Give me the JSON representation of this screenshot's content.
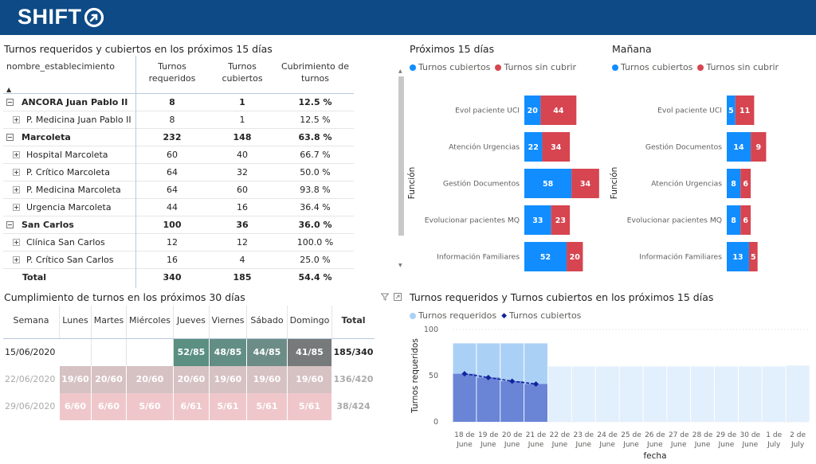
{
  "app": {
    "logo_text": "SHIFT",
    "brand_color": "#0d4a86"
  },
  "coverage_table": {
    "title": "Turnos requeridos y cubiertos en los próximos 15 días",
    "headers": [
      "nombre_establecimiento",
      "Turnos requeridos",
      "Turnos cubiertos",
      "Cubrimiento de turnos"
    ],
    "rows": [
      {
        "type": "group",
        "name": "ANCORA Juan Pablo II",
        "req": "8",
        "cov": "1",
        "pct": "12.5 %"
      },
      {
        "type": "child",
        "name": "P. Medicina Juan Pablo II",
        "req": "8",
        "cov": "1",
        "pct": "12.5 %"
      },
      {
        "type": "group",
        "name": "Marcoleta",
        "req": "232",
        "cov": "148",
        "pct": "63.8 %"
      },
      {
        "type": "child",
        "name": "Hospital Marcoleta",
        "req": "60",
        "cov": "40",
        "pct": "66.7 %"
      },
      {
        "type": "child",
        "name": "P. Crítico Marcoleta",
        "req": "64",
        "cov": "32",
        "pct": "50.0 %"
      },
      {
        "type": "child",
        "name": "P. Medicina Marcoleta",
        "req": "64",
        "cov": "60",
        "pct": "93.8 %"
      },
      {
        "type": "child",
        "name": "Urgencia Marcoleta",
        "req": "44",
        "cov": "16",
        "pct": "36.4 %"
      },
      {
        "type": "group",
        "name": "San Carlos",
        "req": "100",
        "cov": "36",
        "pct": "36.0 %"
      },
      {
        "type": "child",
        "name": "Clínica San Carlos",
        "req": "12",
        "cov": "12",
        "pct": "100.0 %"
      },
      {
        "type": "child",
        "name": "P. Crítico San Carlos",
        "req": "16",
        "cov": "4",
        "pct": "25.0 %"
      }
    ],
    "total": {
      "name": "Total",
      "req": "340",
      "cov": "185",
      "pct": "54.4 %"
    }
  },
  "weekly_table": {
    "title": "Cumplimiento de turnos en los próximos 30 días",
    "headers": [
      "Semana",
      "Lunes",
      "Martes",
      "Miércoles",
      "Jueves",
      "Viernes",
      "Sábado",
      "Domingo",
      "Total"
    ],
    "rows": [
      {
        "week": "15/06/2020",
        "cells": [
          "",
          "",
          "",
          "52/85",
          "48/85",
          "44/85",
          "41/85"
        ],
        "colors": [
          "",
          "",
          "",
          "#5a8f82",
          "#628e85",
          "#6c8c87",
          "#767a7a"
        ],
        "total": "185/340",
        "faded": false
      },
      {
        "week": "22/06/2020",
        "cells": [
          "19/60",
          "20/60",
          "20/60",
          "20/60",
          "19/60",
          "19/60",
          "19/60"
        ],
        "colors": [
          "#d6c1c3",
          "#d6c1c3",
          "#d6c1c3",
          "#d6c1c3",
          "#d6c1c3",
          "#d6c1c3",
          "#d6c1c3"
        ],
        "total": "136/420",
        "faded": true
      },
      {
        "week": "29/06/2020",
        "cells": [
          "6/60",
          "6/60",
          "5/60",
          "6/61",
          "5/61",
          "5/61",
          "5/61"
        ],
        "colors": [
          "#efc7cb",
          "#efc7cb",
          "#efc7cb",
          "#efc7cb",
          "#efc7cb",
          "#efc7cb",
          "#efc7cb"
        ],
        "total": "38/424",
        "faded": true
      }
    ]
  },
  "chart_data": [
    {
      "type": "bar",
      "title": "Próximos 15 días",
      "ylabel": "Función",
      "stacked": true,
      "orientation": "horizontal",
      "legend_position": "top-left",
      "categories": [
        "Evol paciente UCI",
        "Atención Urgencias",
        "Gestión Documentos",
        "Evolucionar pacientes MQ",
        "Información Familiares"
      ],
      "series": [
        {
          "name": "Turnos cubiertos",
          "color": "#118dff",
          "values": [
            20,
            22,
            58,
            33,
            52
          ]
        },
        {
          "name": "Turnos sin cubrir",
          "color": "#d64550",
          "values": [
            44,
            34,
            34,
            23,
            20
          ]
        }
      ]
    },
    {
      "type": "bar",
      "title": "Mañana",
      "ylabel": "Función",
      "stacked": true,
      "orientation": "horizontal",
      "legend_position": "top-left",
      "categories": [
        "Evol paciente UCI",
        "Gestión Documentos",
        "Atención Urgencias",
        "Evolucionar pacientes MQ",
        "Información Familiares"
      ],
      "series": [
        {
          "name": "Turnos cubiertos",
          "color": "#118dff",
          "values": [
            5,
            14,
            8,
            8,
            13
          ]
        },
        {
          "name": "Turnos sin cubrir",
          "color": "#d64550",
          "values": [
            11,
            9,
            6,
            6,
            5
          ]
        }
      ]
    },
    {
      "type": "bar",
      "title": "Turnos requeridos y Turnos cubiertos en los próximos 15 días",
      "xlabel": "fecha",
      "ylabel": "Turnos requeridos",
      "ylim": [
        0,
        100
      ],
      "yticks": [
        0,
        50,
        100
      ],
      "grid": true,
      "legend_position": "top-left",
      "categories": [
        "18 de June",
        "19 de June",
        "20 de June",
        "21 de June",
        "22 de June",
        "23 de June",
        "24 de June",
        "25 de June",
        "26 de June",
        "27 de June",
        "28 de June",
        "29 de June",
        "30 de June",
        "1 de July",
        "2 de July"
      ],
      "series": [
        {
          "name": "Turnos requeridos",
          "type": "bar",
          "color": "#abd0f5",
          "values": [
            85,
            85,
            85,
            85,
            60,
            60,
            60,
            60,
            60,
            60,
            60,
            60,
            60,
            60,
            61
          ]
        },
        {
          "name": "Turnos cubiertos",
          "type": "line",
          "color": "#12239e",
          "values": [
            52,
            48,
            44,
            41,
            null,
            null,
            null,
            null,
            null,
            null,
            null,
            null,
            null,
            null,
            null
          ]
        }
      ]
    }
  ]
}
